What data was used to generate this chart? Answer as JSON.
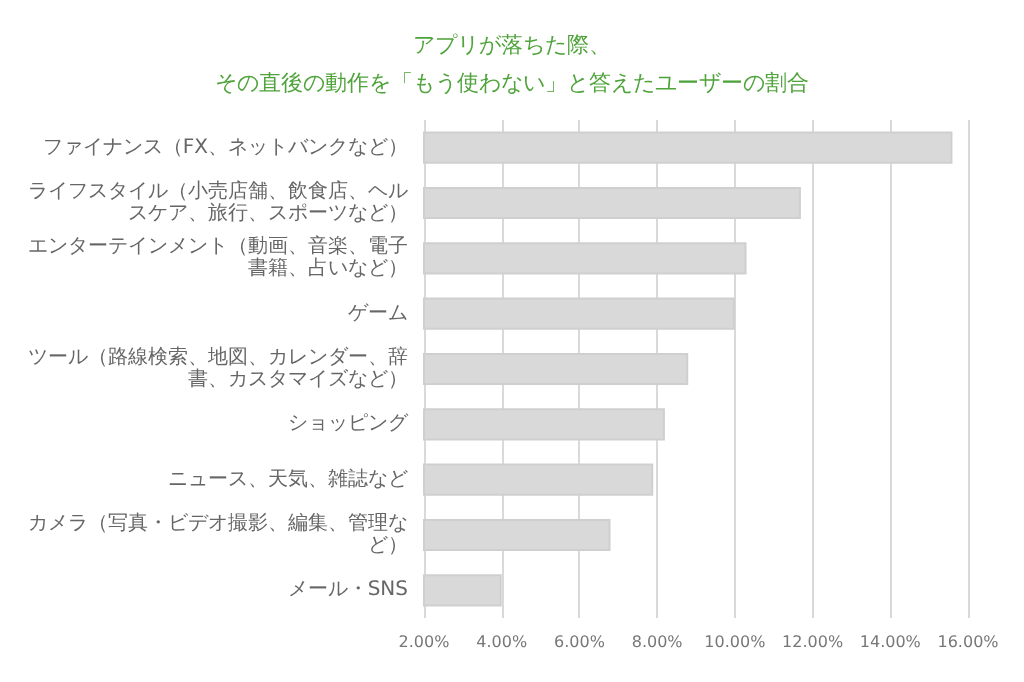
{
  "chart_data": {
    "type": "bar",
    "orientation": "horizontal",
    "title": "アプリが落ちた際、",
    "subtitle": "その直後の動作を「もう使わない」と答えたユーザーの割合",
    "categories": [
      "ファイナンス（FX、ネットバンクなど）",
      "ライフスタイル（小売店舗、飲食店、ヘルスケア、旅行、スポーツなど）",
      "エンターテインメント（動画、音楽、電子書籍、占いなど）",
      "ゲーム",
      "ツール（路線検索、地図、カレンダー、辞書、カスタマイズなど）",
      "ショッピング",
      "ニュース、天気、雑誌など",
      "カメラ（写真・ビデオ撮影、編集、管理など）",
      "メール・SNS"
    ],
    "values": [
      15.6,
      11.7,
      10.3,
      10.0,
      8.8,
      8.2,
      7.9,
      6.8,
      4.0
    ],
    "color": "#d9d9d9",
    "xlim": [
      2,
      16
    ],
    "xticks": [
      {
        "value": 2,
        "label": "2.00%"
      },
      {
        "value": 4,
        "label": "4.00%"
      },
      {
        "value": 6,
        "label": "6.00%"
      },
      {
        "value": 8,
        "label": "8.00%"
      },
      {
        "value": 10,
        "label": "10.00%"
      },
      {
        "value": 12,
        "label": "12.00%"
      },
      {
        "value": 14,
        "label": "14.00%"
      },
      {
        "value": 16,
        "label": "16.00%"
      }
    ],
    "grid": "x"
  }
}
